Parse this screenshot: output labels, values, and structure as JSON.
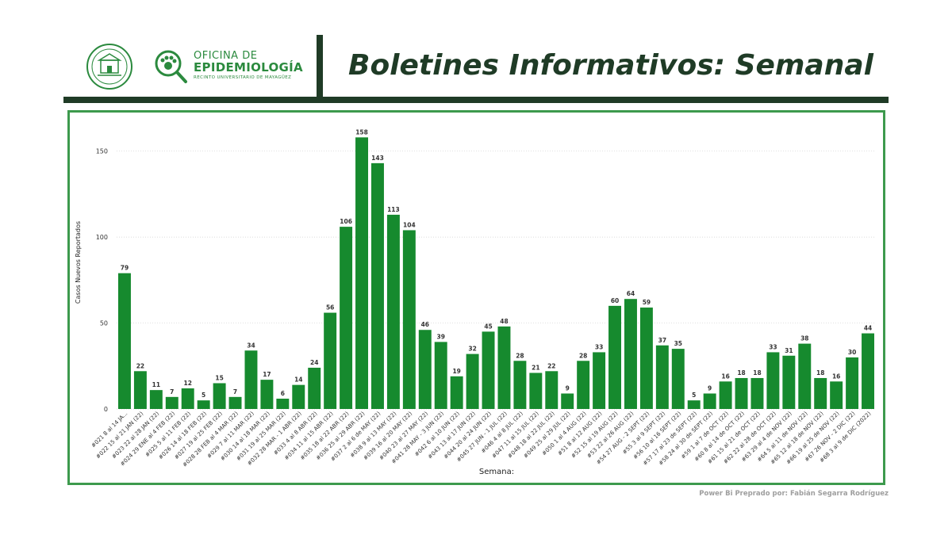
{
  "header": {
    "title": "Boletines Informativos: Semanal",
    "logo": {
      "line1": "OFICINA DE",
      "line2": "EPIDEMIOLOGÍA",
      "line3": "RECINTO UNIVERSITARIO DE MAYAGÜEZ"
    }
  },
  "footer": {
    "credit": "Power Bi Preprado por: Fabián Segarra Rodríguez"
  },
  "colors": {
    "bar": "#168a2e",
    "header_dark": "#1f3b26",
    "frame": "#3d9a4d",
    "logo_green": "#2b8a3e"
  },
  "icons": {
    "seal": "university-seal-icon",
    "logo": "paw-magnifier-icon"
  },
  "chart_data": {
    "type": "bar",
    "xlabel": "Semana:",
    "ylabel": "Casos Nuevos Reportados",
    "ylim": [
      0,
      160
    ],
    "yticks": [
      0,
      50,
      100,
      150
    ],
    "grid": true,
    "categories": [
      "#021 8 al 14 JA...",
      "#022 15 al 21 JAN (22)",
      "#023 22 al 28 JAN (22)",
      "#024 29 ENE al 4 FEB (22)",
      "#025 5 al 11 FEB (22)",
      "#026 14 al 18 FEB (22)",
      "#027 19 al 25 FEB (22)",
      "#028 28 FEB al 4 MAR (22)",
      "#029 7 al 11 MAR (22)",
      "#030 14 al 18 MAR (22)",
      "#031 19 al 25 MAR (22)",
      "#032 28 MAR - 1 ABR (22)",
      "#033 4 al 8 ABR (22)",
      "#034 11 al 15 ABR (22)",
      "#035 18 al 22 ABR (22)",
      "#036 25 al 29 ABR (22)",
      "#037 2 al 6 de MAY (22)",
      "#038 9 al 13 MAY (22)",
      "#039 16 al 20 MAY (22)",
      "#040 23 al 27 MAY (22)",
      "#041 28 MAY - 3 JUN (22)",
      "#042 6 al 10 JUN (22)",
      "#043 13 al 17 JUN (22)",
      "#044 20 al 24 JUN (22)",
      "#045 27 JUN - 1 JUL (22)",
      "#046 4 al 8 JUL (22)",
      "#047 11 al 15 JUL (22)",
      "#048 18 al 22 JUL (22)",
      "#049 25 al 29 JUL (22)",
      "#050 1 al 4 AUG (22)",
      "#51 8 al 12 AUG (22)",
      "#52 15 al 19 AUG (22)",
      "#53 22 al 26 AUG (22)",
      "#54 27 AUG - 2 SEPT (22)",
      "#55 3 al 9 SEPT (22)",
      "#56 10 al 16 SEPT (22)",
      "#57 17 al 23 de SEPT (22)",
      "#58 24 al 30 de SEPT (22)",
      "#59 1 al 7 de OCT (22)",
      "#60 8 al 14 de OCT (22)",
      "#61 15 al 21 de OCT (22)",
      "#62 22 al 28 de OCT (22)",
      "#63 29 al 4 de NOV (22)",
      "#64 5 al 11 de NOV (22)",
      "#65 12 al 18 de NOV (22)",
      "#66 19 al 25 de NOV (22)",
      "#67 26 NOV - 2 DIC (22)",
      "#68 3 al 9 de DIC (2022)"
    ],
    "values": [
      79,
      22,
      11,
      7,
      12,
      5,
      15,
      7,
      34,
      17,
      6,
      14,
      24,
      56,
      106,
      158,
      143,
      113,
      104,
      46,
      39,
      19,
      32,
      45,
      48,
      28,
      21,
      22,
      9,
      28,
      33,
      60,
      64,
      59,
      37,
      35,
      5,
      9,
      16,
      18,
      18,
      33,
      31,
      38,
      18,
      16,
      30,
      44
    ]
  }
}
